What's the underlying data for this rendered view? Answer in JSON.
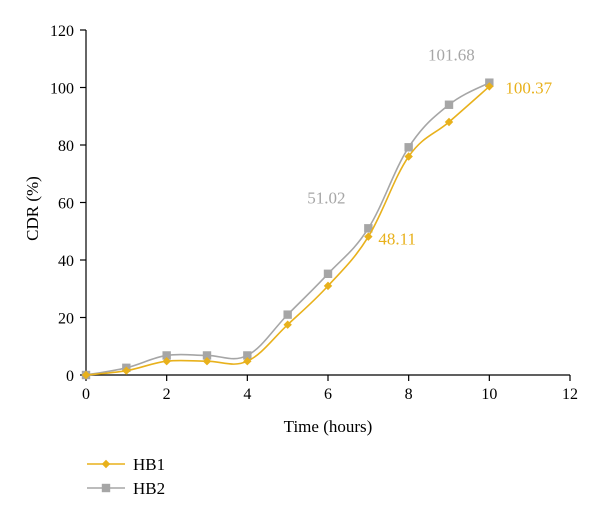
{
  "chart_data": {
    "type": "line",
    "title": "",
    "xlabel": "Time (hours)",
    "ylabel": "CDR (%)",
    "xlim": [
      0,
      12
    ],
    "ylim": [
      0,
      120
    ],
    "x_ticks": [
      0,
      2,
      4,
      6,
      8,
      10,
      12
    ],
    "y_ticks": [
      0,
      20,
      40,
      60,
      80,
      100,
      120
    ],
    "grid": false,
    "legend_position": "bottom-left",
    "series": [
      {
        "name": "HB1",
        "color": "#E8B11C",
        "marker": "diamond",
        "x": [
          0,
          1,
          2,
          3,
          4,
          5,
          6,
          7,
          8,
          9,
          10
        ],
        "y": [
          0,
          1.5,
          4.8,
          4.8,
          4.8,
          17.5,
          31,
          48.11,
          76,
          88,
          100.37
        ]
      },
      {
        "name": "HB2",
        "color": "#A6A6A6",
        "marker": "square",
        "x": [
          0,
          1,
          2,
          3,
          4,
          5,
          6,
          7,
          8,
          9,
          10
        ],
        "y": [
          0,
          2.5,
          6.8,
          6.8,
          6.8,
          21,
          35.2,
          51.02,
          79.2,
          94,
          101.68
        ]
      }
    ],
    "annotations": [
      {
        "text": "101.68",
        "series": "HB2",
        "x": 10,
        "y": 101.68,
        "color": "#A6A6A6"
      },
      {
        "text": "100.37",
        "series": "HB1",
        "x": 10,
        "y": 100.37,
        "color": "#E8B11C"
      },
      {
        "text": "51.02",
        "series": "HB2",
        "x": 7,
        "y": 51.02,
        "color": "#A6A6A6"
      },
      {
        "text": "48.11",
        "series": "HB1",
        "x": 7,
        "y": 48.11,
        "color": "#E8B11C"
      }
    ]
  }
}
